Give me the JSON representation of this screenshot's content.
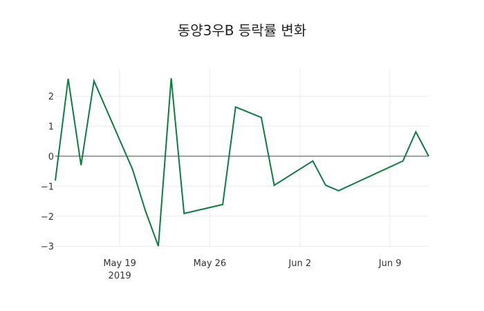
{
  "chart_data": {
    "type": "line",
    "title": "동양3우B 등락률 변화",
    "xlabel": "",
    "ylabel": "",
    "x": [
      "2019-05-14",
      "2019-05-15",
      "2019-05-16",
      "2019-05-17",
      "2019-05-20",
      "2019-05-21",
      "2019-05-22",
      "2019-05-23",
      "2019-05-24",
      "2019-05-27",
      "2019-05-28",
      "2019-05-30",
      "2019-05-31",
      "2019-06-03",
      "2019-06-04",
      "2019-06-05",
      "2019-06-10",
      "2019-06-11",
      "2019-06-12"
    ],
    "series": [
      {
        "name": "등락률",
        "color": "#0a7d3f",
        "values": [
          -0.81,
          2.58,
          -0.3,
          2.51,
          -0.44,
          -1.82,
          -3.0,
          2.6,
          -1.91,
          -1.61,
          1.64,
          1.29,
          -0.97,
          -0.16,
          -0.97,
          -1.15,
          -0.16,
          0.81,
          0.0
        ]
      }
    ],
    "x_ticks": [
      {
        "label": "May 19",
        "sub": "2019",
        "date": "2019-05-19"
      },
      {
        "label": "May 26",
        "sub": "",
        "date": "2019-05-26"
      },
      {
        "label": "Jun 2",
        "sub": "",
        "date": "2019-06-02"
      },
      {
        "label": "Jun 9",
        "sub": "",
        "date": "2019-06-09"
      }
    ],
    "y_ticks": [
      2,
      1,
      0,
      -1,
      -2,
      -3
    ],
    "y_tick_labels": [
      "2",
      "1",
      "0",
      "−1",
      "−2",
      "−3"
    ],
    "ylim": [
      -3.2,
      2.9
    ],
    "xlim": [
      "2019-05-14",
      "2019-06-12"
    ],
    "grid": true,
    "zero_line": true,
    "legend": "none"
  }
}
